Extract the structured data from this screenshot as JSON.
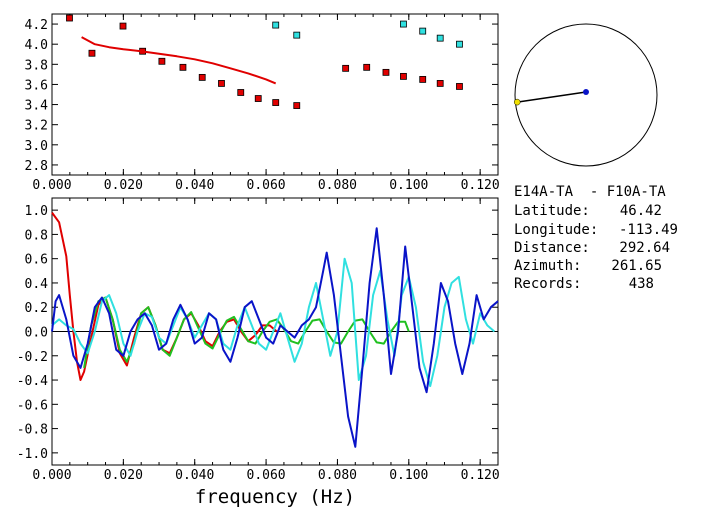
{
  "xlabel": "frequency (Hz)",
  "colors": {
    "red": "#e00000",
    "cyan": "#30e0e0",
    "blue": "#0a14c8",
    "green": "#20c020",
    "black": "#000000",
    "yellow": "#f0e000"
  },
  "info": {
    "station_pair": "E14A-TA  - F10A-TA",
    "rows": [
      {
        "label": "Latitude:",
        "value": "46.42"
      },
      {
        "label": "Longitude:",
        "value": "-113.49"
      },
      {
        "label": "Distance:",
        "value": "292.64"
      },
      {
        "label": "Azimuth:",
        "value": "261.65"
      },
      {
        "label": "Records:",
        "value": "438"
      }
    ]
  },
  "chart_data": [
    {
      "type": "scatter",
      "xlim": [
        0,
        0.125
      ],
      "ylim": [
        2.7,
        4.3
      ],
      "xticks": [
        "0.000",
        "0.020",
        "0.040",
        "0.060",
        "0.080",
        "0.100",
        "0.120"
      ],
      "xtick_values": [
        0,
        0.02,
        0.04,
        0.06,
        0.08,
        0.1,
        0.12
      ],
      "yticks": [
        "4.2",
        "4.0",
        "3.8",
        "3.6",
        "3.4",
        "3.2",
        "3.0",
        "2.8"
      ],
      "ytick_values": [
        4.2,
        4.0,
        3.8,
        3.6,
        3.4,
        3.2,
        3.0,
        2.8
      ],
      "series": [
        {
          "color": "red",
          "marker": "square",
          "x": [
            0.0049,
            0.0112,
            0.0199,
            0.0254,
            0.0308,
            0.0367,
            0.0421,
            0.0475,
            0.0529,
            0.0578,
            0.0627,
            0.0686,
            0.0823,
            0.0882,
            0.0936,
            0.0985,
            0.1039,
            0.1088,
            0.1142
          ],
          "y": [
            4.26,
            3.91,
            4.18,
            3.93,
            3.83,
            3.77,
            3.67,
            3.61,
            3.52,
            3.46,
            3.42,
            3.39,
            3.76,
            3.77,
            3.72,
            3.68,
            3.65,
            3.61,
            3.58
          ]
        },
        {
          "color": "cyan",
          "marker": "square",
          "x": [
            0.0627,
            0.0686,
            0.0985,
            0.1039,
            0.1088,
            0.1142
          ],
          "y": [
            4.19,
            4.09,
            4.2,
            4.13,
            4.06,
            4.0
          ]
        },
        {
          "color": "red",
          "marker": "line",
          "x": [
            0.0083,
            0.012,
            0.016,
            0.02,
            0.025,
            0.03,
            0.035,
            0.04,
            0.045,
            0.05,
            0.055,
            0.06,
            0.0627
          ],
          "y": [
            4.07,
            4.0,
            3.97,
            3.95,
            3.93,
            3.905,
            3.88,
            3.85,
            3.81,
            3.76,
            3.71,
            3.65,
            3.61
          ]
        }
      ]
    },
    {
      "type": "line",
      "xlim": [
        0,
        0.125
      ],
      "ylim": [
        -1.1,
        1.1
      ],
      "xticks": [
        "0.000",
        "0.020",
        "0.040",
        "0.060",
        "0.080",
        "0.100",
        "0.120"
      ],
      "xtick_values": [
        0,
        0.02,
        0.04,
        0.06,
        0.08,
        0.1,
        0.12
      ],
      "yticks": [
        "1.0",
        "0.8",
        "0.6",
        "0.4",
        "0.2",
        "0.0",
        "-0.2",
        "-0.4",
        "-0.6",
        "-0.8",
        "-1.0"
      ],
      "ytick_values": [
        1.0,
        0.8,
        0.6,
        0.4,
        0.2,
        0.0,
        -0.2,
        -0.4,
        -0.6,
        -0.8,
        -1.0
      ],
      "series": [
        {
          "color": "red",
          "x": [
            0.0,
            0.002,
            0.004,
            0.005,
            0.006,
            0.007,
            0.008,
            0.009,
            0.011,
            0.013,
            0.015,
            0.017,
            0.019,
            0.021,
            0.023,
            0.025,
            0.027,
            0.029,
            0.031,
            0.033,
            0.035,
            0.037,
            0.039,
            0.041,
            0.043,
            0.045,
            0.047,
            0.049,
            0.051,
            0.053,
            0.055,
            0.057,
            0.059,
            0.061,
            0.063
          ],
          "y": [
            0.98,
            0.9,
            0.62,
            0.3,
            0.0,
            -0.25,
            -0.4,
            -0.33,
            -0.05,
            0.22,
            0.28,
            0.1,
            -0.18,
            -0.28,
            -0.05,
            0.15,
            0.2,
            0.05,
            -0.15,
            -0.18,
            -0.05,
            0.1,
            0.15,
            0.05,
            -0.08,
            -0.12,
            0.0,
            0.08,
            0.1,
            0.0,
            -0.08,
            -0.03,
            0.05,
            0.05,
            0.0
          ]
        },
        {
          "color": "green",
          "x": [
            0.009,
            0.011,
            0.013,
            0.015,
            0.017,
            0.019,
            0.021,
            0.023,
            0.025,
            0.027,
            0.029,
            0.031,
            0.033,
            0.035,
            0.037,
            0.039,
            0.041,
            0.043,
            0.045,
            0.047,
            0.049,
            0.051,
            0.053,
            0.055,
            0.057,
            0.059,
            0.061,
            0.063,
            0.065,
            0.067,
            0.069,
            0.071,
            0.073,
            0.075,
            0.077,
            0.079,
            0.081,
            0.083,
            0.085,
            0.087,
            0.089,
            0.091,
            0.093,
            0.095,
            0.097,
            0.099,
            0.1
          ],
          "y": [
            -0.3,
            0.05,
            0.25,
            0.28,
            0.1,
            -0.15,
            -0.25,
            -0.1,
            0.15,
            0.2,
            0.05,
            -0.15,
            -0.2,
            -0.05,
            0.1,
            0.16,
            0.03,
            -0.1,
            -0.14,
            -0.02,
            0.09,
            0.12,
            0.02,
            -0.08,
            -0.1,
            0.0,
            0.08,
            0.1,
            0.02,
            -0.08,
            -0.1,
            0.0,
            0.09,
            0.1,
            0.0,
            -0.09,
            -0.1,
            0.0,
            0.09,
            0.1,
            0.0,
            -0.09,
            -0.1,
            0.0,
            0.08,
            0.08,
            0.0
          ]
        },
        {
          "color": "cyan",
          "x": [
            0.0,
            0.002,
            0.004,
            0.006,
            0.008,
            0.01,
            0.012,
            0.014,
            0.016,
            0.018,
            0.02,
            0.022,
            0.024,
            0.026,
            0.028,
            0.03,
            0.032,
            0.034,
            0.036,
            0.038,
            0.04,
            0.042,
            0.044,
            0.046,
            0.048,
            0.05,
            0.052,
            0.054,
            0.056,
            0.058,
            0.06,
            0.062,
            0.064,
            0.066,
            0.068,
            0.07,
            0.072,
            0.074,
            0.076,
            0.078,
            0.08,
            0.082,
            0.084,
            0.086,
            0.088,
            0.09,
            0.092,
            0.094,
            0.096,
            0.098,
            0.1,
            0.102,
            0.104,
            0.106,
            0.108,
            0.11,
            0.112,
            0.114,
            0.116,
            0.118,
            0.12,
            0.122,
            0.124
          ],
          "y": [
            0.05,
            0.1,
            0.05,
            0.02,
            -0.1,
            -0.18,
            0.0,
            0.25,
            0.3,
            0.15,
            -0.1,
            -0.2,
            0.0,
            0.15,
            0.12,
            -0.05,
            -0.1,
            0.05,
            0.2,
            0.1,
            -0.05,
            0.05,
            0.15,
            0.1,
            -0.1,
            -0.15,
            0.05,
            0.2,
            0.05,
            -0.1,
            -0.15,
            0.0,
            0.15,
            -0.05,
            -0.25,
            -0.1,
            0.2,
            0.4,
            0.1,
            -0.2,
            0.0,
            0.6,
            0.4,
            -0.4,
            -0.2,
            0.3,
            0.5,
            0.1,
            -0.2,
            0.3,
            0.45,
            0.2,
            -0.25,
            -0.45,
            -0.2,
            0.2,
            0.4,
            0.45,
            0.1,
            -0.1,
            0.15,
            0.05,
            0.0
          ]
        },
        {
          "color": "blue",
          "x": [
            0.0,
            0.001,
            0.002,
            0.004,
            0.006,
            0.008,
            0.01,
            0.012,
            0.014,
            0.016,
            0.018,
            0.02,
            0.022,
            0.024,
            0.026,
            0.028,
            0.03,
            0.032,
            0.034,
            0.036,
            0.038,
            0.04,
            0.042,
            0.044,
            0.046,
            0.048,
            0.05,
            0.052,
            0.054,
            0.056,
            0.058,
            0.06,
            0.062,
            0.064,
            0.066,
            0.068,
            0.07,
            0.072,
            0.074,
            0.076,
            0.077,
            0.079,
            0.081,
            0.083,
            0.085,
            0.087,
            0.089,
            0.091,
            0.093,
            0.095,
            0.097,
            0.099,
            0.101,
            0.103,
            0.105,
            0.107,
            0.109,
            0.111,
            0.113,
            0.115,
            0.117,
            0.119,
            0.121,
            0.123,
            0.125
          ],
          "y": [
            0.0,
            0.25,
            0.3,
            0.1,
            -0.2,
            -0.3,
            -0.1,
            0.2,
            0.28,
            0.15,
            -0.15,
            -0.2,
            0.0,
            0.1,
            0.15,
            0.05,
            -0.15,
            -0.1,
            0.1,
            0.22,
            0.1,
            -0.1,
            -0.05,
            0.15,
            0.1,
            -0.15,
            -0.25,
            -0.05,
            0.2,
            0.25,
            0.1,
            -0.05,
            -0.1,
            0.05,
            0.0,
            -0.05,
            0.05,
            0.1,
            0.2,
            0.5,
            0.65,
            0.3,
            -0.2,
            -0.7,
            -0.95,
            -0.3,
            0.4,
            0.85,
            0.3,
            -0.35,
            0.0,
            0.7,
            0.2,
            -0.3,
            -0.5,
            -0.1,
            0.4,
            0.25,
            -0.1,
            -0.35,
            -0.1,
            0.3,
            0.1,
            0.2,
            0.25
          ]
        }
      ]
    }
  ],
  "azimuth_plot": {
    "station_marker_color": "blue",
    "source_marker_color": "yellow",
    "azimuth_deg": 261.65,
    "radius_fraction": 0.98
  }
}
